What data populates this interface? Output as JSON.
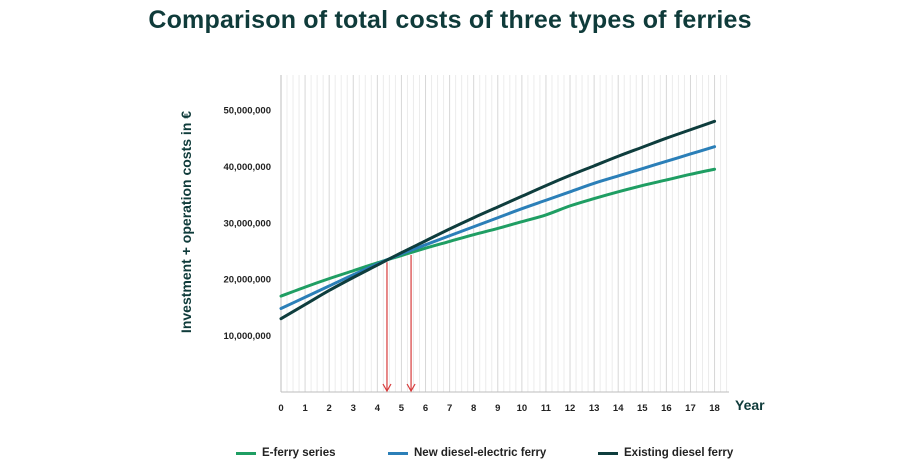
{
  "chart_data": {
    "type": "line",
    "title": "Comparison of total costs of three types of ferries",
    "xlabel": "Year",
    "ylabel": "Investment + operation costs in €",
    "x": [
      0,
      1,
      2,
      3,
      4,
      5,
      6,
      7,
      8,
      9,
      10,
      11,
      12,
      13,
      14,
      15,
      16,
      17,
      18
    ],
    "xlim": [
      0,
      18.6
    ],
    "ylim": [
      0,
      55000000
    ],
    "yticks": [
      10000000,
      20000000,
      30000000,
      40000000,
      50000000
    ],
    "ytick_labels": [
      "10,000,000",
      "20,000,000",
      "30,000,000",
      "40,000,000",
      "50,000,000"
    ],
    "xtick_labels": [
      "0",
      "1",
      "2",
      "3",
      "4",
      "5",
      "6",
      "7",
      "8",
      "9",
      "10",
      "11",
      "12",
      "13",
      "14",
      "15",
      "16",
      "17",
      "18"
    ],
    "grid": "vertical",
    "legend": "bottom",
    "series": [
      {
        "name": "E-ferry series",
        "color": "#1f9e63",
        "values": [
          17000000,
          18600000,
          20100000,
          21500000,
          22900000,
          24200000,
          25500000,
          26700000,
          27900000,
          29000000,
          30200000,
          31400000,
          33000000,
          34300000,
          35500000,
          36600000,
          37600000,
          38600000,
          39500000
        ]
      },
      {
        "name": "New diesel-electric ferry",
        "color": "#2b7fb8",
        "values": [
          14800000,
          16800000,
          18800000,
          20800000,
          22700000,
          24500000,
          26100000,
          27700000,
          29300000,
          30900000,
          32500000,
          34000000,
          35500000,
          37000000,
          38300000,
          39600000,
          40900000,
          42200000,
          43500000
        ]
      },
      {
        "name": "Existing diesel ferry",
        "color": "#0e3d3d",
        "values": [
          13000000,
          15500000,
          18000000,
          20300000,
          22500000,
          24700000,
          26800000,
          28900000,
          30900000,
          32800000,
          34700000,
          36600000,
          38400000,
          40100000,
          41800000,
          43400000,
          45000000,
          46500000,
          48000000
        ]
      }
    ],
    "annotations": [
      {
        "type": "arrow-down",
        "x": 4.4,
        "from_y": 23000000,
        "to_y": 0,
        "color": "#d63b3b"
      },
      {
        "type": "arrow-down",
        "x": 5.4,
        "from_y": 24300000,
        "to_y": 0,
        "color": "#d63b3b"
      }
    ]
  }
}
